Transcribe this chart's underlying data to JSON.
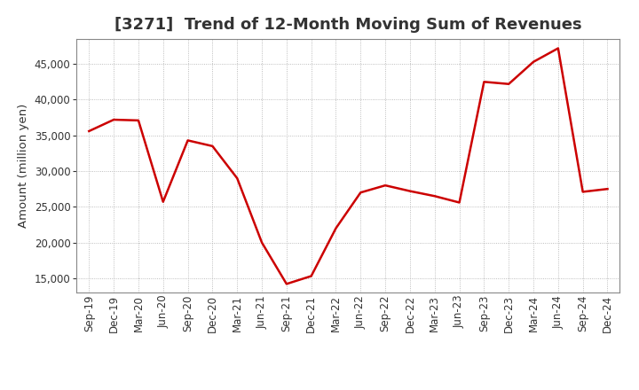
{
  "title": "[3271]  Trend of 12-Month Moving Sum of Revenues",
  "ylabel": "Amount (million yen)",
  "line_color": "#cc0000",
  "background_color": "#ffffff",
  "plot_bg_color": "#ffffff",
  "grid_color": "#aaaaaa",
  "x_labels": [
    "Sep-19",
    "Dec-19",
    "Mar-20",
    "Jun-20",
    "Sep-20",
    "Dec-20",
    "Mar-21",
    "Jun-21",
    "Sep-21",
    "Dec-21",
    "Mar-22",
    "Jun-22",
    "Sep-22",
    "Dec-22",
    "Mar-23",
    "Jun-23",
    "Sep-23",
    "Dec-23",
    "Mar-24",
    "Jun-24",
    "Sep-24",
    "Dec-24"
  ],
  "values": [
    35600,
    37200,
    37100,
    25700,
    34300,
    33500,
    29000,
    20000,
    14200,
    15300,
    22000,
    27000,
    28000,
    27200,
    26500,
    25600,
    42500,
    42200,
    45300,
    47200,
    27100,
    27500
  ],
  "ylim_min": 13000,
  "ylim_max": 48500,
  "yticks": [
    15000,
    20000,
    25000,
    30000,
    35000,
    40000,
    45000
  ],
  "title_fontsize": 13,
  "title_color": "#333333",
  "label_fontsize": 9.5,
  "tick_fontsize": 8.5
}
